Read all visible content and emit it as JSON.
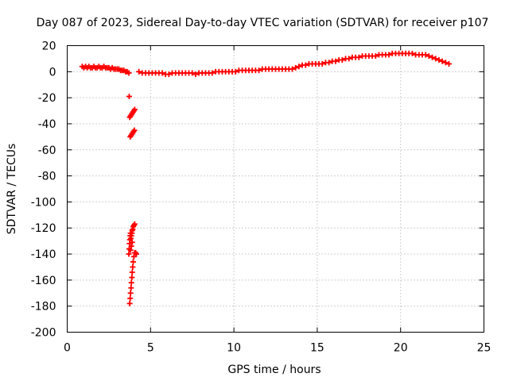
{
  "chart_data": {
    "type": "scatter",
    "title": "Day 087 of 2023, Sidereal Day-to-day VTEC variation (SDTVAR) for receiver p107",
    "xlabel": "GPS time / hours",
    "ylabel": "SDTVAR / TECUs",
    "xlim": [
      0,
      25
    ],
    "ylim": [
      -200,
      20
    ],
    "xticks": [
      0,
      5,
      10,
      15,
      20,
      25
    ],
    "yticks": [
      20,
      0,
      -20,
      -40,
      -60,
      -80,
      -100,
      -120,
      -140,
      -160,
      -180,
      -200
    ],
    "grid": true,
    "marker": "+",
    "marker_color": "#ff0000",
    "series": [
      {
        "name": "SDTVAR",
        "points": [
          [
            0.9,
            4
          ],
          [
            1.0,
            3
          ],
          [
            1.1,
            4
          ],
          [
            1.2,
            3
          ],
          [
            1.3,
            4
          ],
          [
            1.4,
            3
          ],
          [
            1.5,
            3
          ],
          [
            1.6,
            4
          ],
          [
            1.7,
            3
          ],
          [
            1.8,
            3
          ],
          [
            1.9,
            4
          ],
          [
            2.0,
            3
          ],
          [
            2.1,
            3
          ],
          [
            2.2,
            4
          ],
          [
            2.3,
            3
          ],
          [
            2.4,
            3
          ],
          [
            2.5,
            3
          ],
          [
            2.6,
            2
          ],
          [
            2.7,
            3
          ],
          [
            2.8,
            2
          ],
          [
            2.9,
            2
          ],
          [
            3.0,
            2
          ],
          [
            3.1,
            2
          ],
          [
            3.2,
            1
          ],
          [
            3.3,
            1
          ],
          [
            3.4,
            1
          ],
          [
            3.5,
            0
          ],
          [
            3.6,
            0
          ],
          [
            3.7,
            -1
          ],
          [
            3.72,
            -19
          ],
          [
            3.75,
            -35
          ],
          [
            3.8,
            -34
          ],
          [
            3.85,
            -33
          ],
          [
            3.9,
            -32
          ],
          [
            3.95,
            -31
          ],
          [
            4.0,
            -30
          ],
          [
            4.05,
            -29
          ],
          [
            3.78,
            -50
          ],
          [
            3.83,
            -49
          ],
          [
            3.88,
            -48
          ],
          [
            3.93,
            -47
          ],
          [
            3.98,
            -46
          ],
          [
            4.03,
            -45
          ],
          [
            3.7,
            -140
          ],
          [
            3.72,
            -136
          ],
          [
            3.74,
            -132
          ],
          [
            3.76,
            -129
          ],
          [
            3.78,
            -126
          ],
          [
            3.8,
            -124
          ],
          [
            3.82,
            -128
          ],
          [
            3.85,
            -126
          ],
          [
            3.88,
            -124
          ],
          [
            3.9,
            -122
          ],
          [
            3.93,
            -121
          ],
          [
            3.96,
            -119
          ],
          [
            4.0,
            -118
          ],
          [
            4.05,
            -117
          ],
          [
            3.8,
            -137
          ],
          [
            3.85,
            -134
          ],
          [
            3.9,
            -131
          ],
          [
            3.75,
            -178
          ],
          [
            3.78,
            -174
          ],
          [
            3.8,
            -170
          ],
          [
            3.83,
            -166
          ],
          [
            3.85,
            -162
          ],
          [
            3.88,
            -158
          ],
          [
            3.9,
            -154
          ],
          [
            3.93,
            -150
          ],
          [
            3.96,
            -146
          ],
          [
            4.0,
            -142
          ],
          [
            4.05,
            -139
          ],
          [
            4.1,
            -139
          ],
          [
            4.15,
            -140
          ],
          [
            4.3,
            0
          ],
          [
            4.5,
            -1
          ],
          [
            4.7,
            -1
          ],
          [
            4.9,
            -1
          ],
          [
            5.1,
            -1
          ],
          [
            5.3,
            -1
          ],
          [
            5.5,
            -1
          ],
          [
            5.7,
            -1
          ],
          [
            5.9,
            -2
          ],
          [
            6.1,
            -2
          ],
          [
            6.3,
            -1
          ],
          [
            6.5,
            -1
          ],
          [
            6.7,
            -1
          ],
          [
            6.9,
            -1
          ],
          [
            7.1,
            -1
          ],
          [
            7.3,
            -1
          ],
          [
            7.5,
            -1
          ],
          [
            7.7,
            -2
          ],
          [
            7.9,
            -1
          ],
          [
            8.1,
            -1
          ],
          [
            8.3,
            -1
          ],
          [
            8.5,
            -1
          ],
          [
            8.7,
            -1
          ],
          [
            8.9,
            0
          ],
          [
            9.1,
            0
          ],
          [
            9.3,
            0
          ],
          [
            9.5,
            0
          ],
          [
            9.7,
            0
          ],
          [
            9.9,
            0
          ],
          [
            10.1,
            0
          ],
          [
            10.3,
            1
          ],
          [
            10.5,
            1
          ],
          [
            10.7,
            1
          ],
          [
            10.9,
            1
          ],
          [
            11.1,
            1
          ],
          [
            11.3,
            1
          ],
          [
            11.5,
            1
          ],
          [
            11.7,
            2
          ],
          [
            11.9,
            2
          ],
          [
            12.1,
            2
          ],
          [
            12.3,
            2
          ],
          [
            12.5,
            2
          ],
          [
            12.7,
            2
          ],
          [
            12.9,
            2
          ],
          [
            13.1,
            2
          ],
          [
            13.3,
            2
          ],
          [
            13.5,
            2
          ],
          [
            13.7,
            3
          ],
          [
            13.9,
            4
          ],
          [
            14.1,
            5
          ],
          [
            14.3,
            5
          ],
          [
            14.5,
            6
          ],
          [
            14.7,
            6
          ],
          [
            14.9,
            6
          ],
          [
            15.1,
            6
          ],
          [
            15.3,
            6
          ],
          [
            15.5,
            7
          ],
          [
            15.7,
            7
          ],
          [
            15.9,
            8
          ],
          [
            16.1,
            8
          ],
          [
            16.3,
            9
          ],
          [
            16.5,
            9
          ],
          [
            16.7,
            10
          ],
          [
            16.9,
            10
          ],
          [
            17.1,
            11
          ],
          [
            17.3,
            11
          ],
          [
            17.5,
            11
          ],
          [
            17.7,
            12
          ],
          [
            17.9,
            12
          ],
          [
            18.1,
            12
          ],
          [
            18.3,
            12
          ],
          [
            18.5,
            12
          ],
          [
            18.7,
            13
          ],
          [
            18.9,
            13
          ],
          [
            19.1,
            13
          ],
          [
            19.3,
            13
          ],
          [
            19.5,
            14
          ],
          [
            19.7,
            14
          ],
          [
            19.9,
            14
          ],
          [
            20.1,
            14
          ],
          [
            20.3,
            14
          ],
          [
            20.5,
            14
          ],
          [
            20.7,
            14
          ],
          [
            20.9,
            13
          ],
          [
            21.1,
            13
          ],
          [
            21.3,
            13
          ],
          [
            21.5,
            13
          ],
          [
            21.7,
            12
          ],
          [
            21.9,
            11
          ],
          [
            22.1,
            10
          ],
          [
            22.3,
            9
          ],
          [
            22.5,
            8
          ],
          [
            22.7,
            7
          ],
          [
            22.9,
            6
          ]
        ]
      }
    ]
  }
}
